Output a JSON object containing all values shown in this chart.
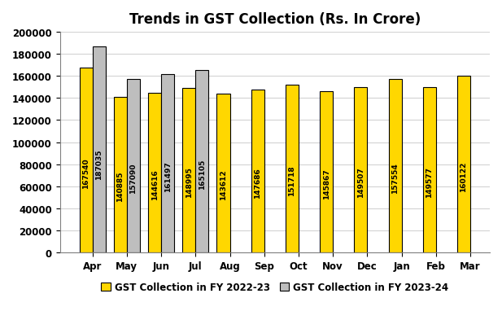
{
  "title": "Trends in GST Collection (Rs. In Crore)",
  "months": [
    "Apr",
    "May",
    "Jun",
    "Jul",
    "Aug",
    "Sep",
    "Oct",
    "Nov",
    "Dec",
    "Jan",
    "Feb",
    "Mar"
  ],
  "fy2223": [
    167540,
    140885,
    144616,
    148995,
    143612,
    147686,
    151718,
    145867,
    149507,
    157554,
    149577,
    160122
  ],
  "fy2324": [
    187035,
    157090,
    161497,
    165105,
    null,
    null,
    null,
    null,
    null,
    null,
    null,
    null
  ],
  "color_2223": "#FFD700",
  "color_2324": "#BEBEBE",
  "bar_edge_color": "#000000",
  "ylim": [
    0,
    200000
  ],
  "yticks": [
    0,
    20000,
    40000,
    60000,
    80000,
    100000,
    120000,
    140000,
    160000,
    180000,
    200000
  ],
  "legend_label_2223": "GST Collection in FY 2022-23",
  "legend_label_2324": "GST Collection in FY 2023-24",
  "label_fontsize": 6.5,
  "title_fontsize": 12,
  "tick_fontsize": 8.5,
  "bar_width": 0.38,
  "figsize": [
    6.17,
    4.1
  ],
  "dpi": 100
}
